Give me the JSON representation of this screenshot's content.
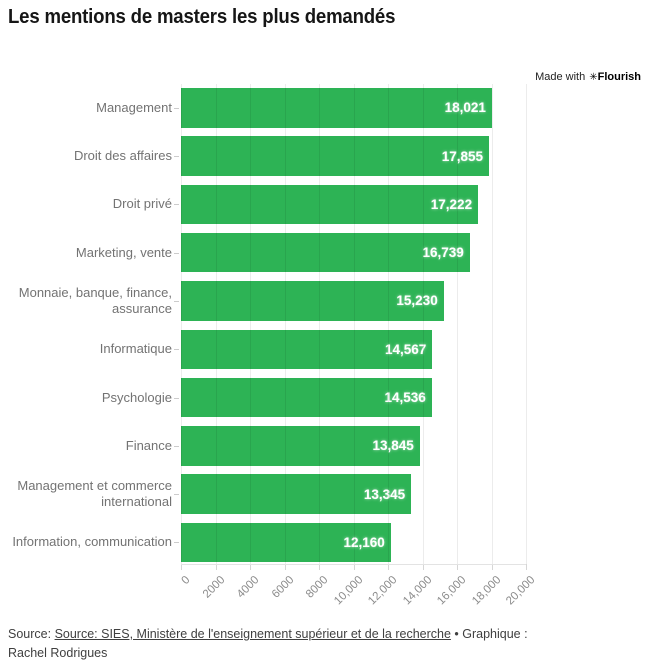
{
  "title": "Les mentions de masters les plus demandés",
  "attribution": {
    "prefix": "Made with",
    "flower_icon": "✳",
    "brand": "Flourish"
  },
  "chart_data": {
    "type": "bar",
    "orientation": "horizontal",
    "title": "Les mentions de masters les plus demandés",
    "categories": [
      "Management",
      "Droit des affaires",
      "Droit privé",
      "Marketing, vente",
      "Monnaie, banque, finance, assurance",
      "Informatique",
      "Psychologie",
      "Finance",
      "Management et commerce international",
      "Information, communication"
    ],
    "values": [
      18021,
      17855,
      17222,
      16739,
      15230,
      14567,
      14536,
      13845,
      13345,
      12160
    ],
    "value_labels": [
      "18,021",
      "17,855",
      "17,222",
      "16,739",
      "15,230",
      "14,567",
      "14,536",
      "13,845",
      "13,345",
      "12,160"
    ],
    "xlim": [
      0,
      20000
    ],
    "x_ticks": [
      0,
      2000,
      4000,
      6000,
      8000,
      10000,
      12000,
      14000,
      16000,
      18000,
      20000
    ],
    "x_tick_labels": [
      "0",
      "2000",
      "4000",
      "6000",
      "8000",
      "10,000",
      "12,000",
      "14,000",
      "16,000",
      "18,000",
      "20,000"
    ],
    "grid": true,
    "legend": "none",
    "bar_color": "#2db355",
    "value_label_color": "#ffffff",
    "category_label_color": "#737373",
    "tick_label_color": "#8c8c8c"
  },
  "footer": {
    "prefix": "Source: ",
    "link_text": "Source: SIES, Ministère de l'enseignement supérieur et de la recherche",
    "separator": " • ",
    "credit": "Graphique : Rachel Rodrigues"
  }
}
